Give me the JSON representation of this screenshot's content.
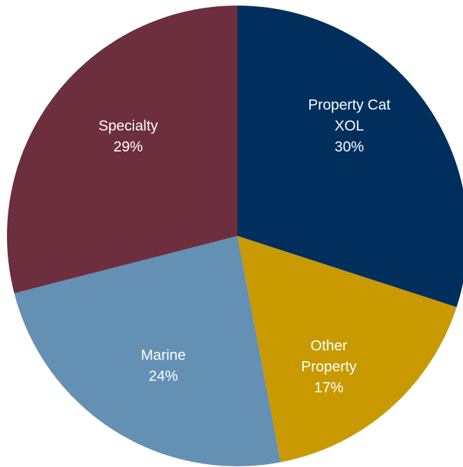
{
  "chart_data": {
    "type": "pie",
    "slices": [
      {
        "label_lines": [
          "Property Cat",
          "XOL",
          "30%"
        ],
        "category": "Property Cat XOL",
        "value": 30,
        "color": "#002f5d",
        "label_color": "#ffffff"
      },
      {
        "label_lines": [
          "Other",
          "Property",
          "17%"
        ],
        "category": "Other Property",
        "value": 17,
        "color": "#c89a00",
        "label_color": "#ffffff"
      },
      {
        "label_lines": [
          "Marine",
          "24%"
        ],
        "category": "Marine",
        "value": 24,
        "color": "#6490b4",
        "label_color": "#ffffff"
      },
      {
        "label_lines": [
          "Specialty",
          "29%"
        ],
        "category": "Specialty",
        "value": 29,
        "color": "#6d2e3e",
        "label_color": "#ffffff"
      }
    ],
    "start_angle_deg": 0,
    "direction": "clockwise",
    "legend": "none"
  }
}
